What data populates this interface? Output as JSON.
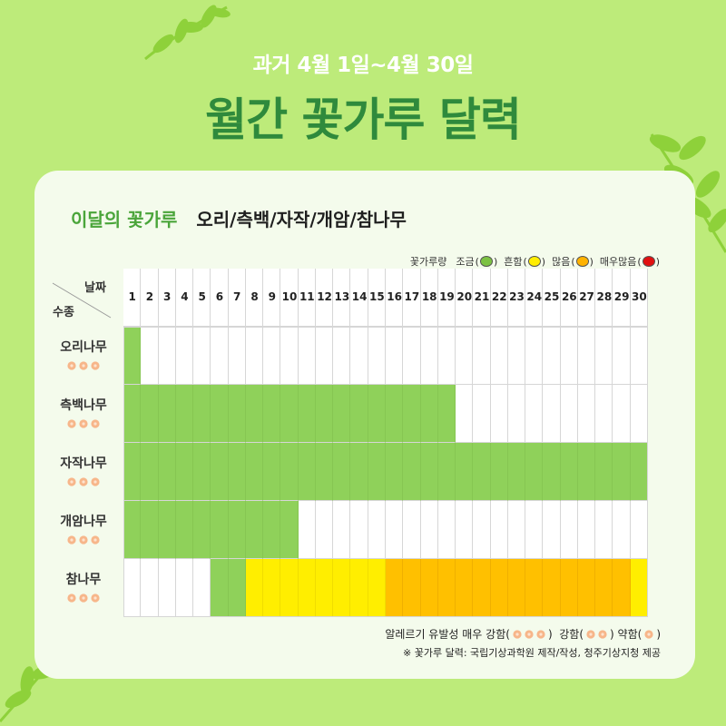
{
  "header": {
    "subtitle": "과거 4월 1일~4월 30일",
    "title": "월간 꽃가루 달력"
  },
  "card": {
    "species_label": "이달의 꽃가루",
    "species_value": "오리/측백/자작/개암/참나무"
  },
  "legend": {
    "prefix": "꽃가루량",
    "items": [
      {
        "label": "조금",
        "color": "#7cc242"
      },
      {
        "label": "흔함",
        "color": "#ffee00"
      },
      {
        "label": "많음",
        "color": "#ffb300"
      },
      {
        "label": "매우많음",
        "color": "#e11010"
      }
    ]
  },
  "table": {
    "corner_date": "날짜",
    "corner_species": "수종",
    "days": [
      "1",
      "2",
      "3",
      "4",
      "5",
      "6",
      "7",
      "8",
      "9",
      "10",
      "11",
      "12",
      "13",
      "14",
      "15",
      "16",
      "17",
      "18",
      "19",
      "20",
      "21",
      "22",
      "23",
      "24",
      "25",
      "26",
      "27",
      "28",
      "29",
      "30"
    ],
    "colors": {
      "G": "#8fd15a",
      "Y": "#ffee00",
      "O": "#ffc000",
      "W": "#ffffff"
    },
    "rows": [
      {
        "name": "오리나무",
        "marks": 3,
        "cells": "GWWWWWWWWWWWWWWWWWWWWWWWWWWWWW"
      },
      {
        "name": "측백나무",
        "marks": 3,
        "cells": "GGGGGGGGGGGGGGGGGGGWWWWWWWWWWW"
      },
      {
        "name": "자작나무",
        "marks": 3,
        "cells": "GGGGGGGGGGGGGGGGGGGGGGGGGGGGGG"
      },
      {
        "name": "개암나무",
        "marks": 3,
        "cells": "GGGGGGGGGGWWWWWWWWWWWWWWWWWWWW"
      },
      {
        "name": "참나무",
        "marks": 3,
        "cells": "WWWWWGGYYYYYYYYOOOOOOOOOOOOOOY"
      }
    ]
  },
  "footer": {
    "allergy_label": "알레르기 유발성",
    "very_strong": "매우 강함(",
    "strong": "강함(",
    "weak": "약함(",
    "close": ")",
    "source": "※ 꽃가루 달력: 국립기상과학원 제작/작성, 청주기상지청 제공"
  },
  "icons": [
    "leaf-icon",
    "flower-icon"
  ],
  "mark_color": "#f7b68a"
}
